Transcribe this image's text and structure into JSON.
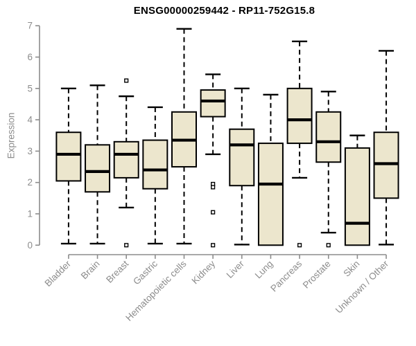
{
  "chart_data": {
    "type": "boxplot",
    "title": "ENSG00000259442 - RP11-752G15.8",
    "ylabel": "Expression",
    "xlabel": "",
    "ylim": [
      0,
      7
    ],
    "yticks": [
      0,
      1,
      2,
      3,
      4,
      5,
      6,
      7
    ],
    "grid": false,
    "legend": false,
    "categories": [
      "Bladder",
      "Brain",
      "Breast",
      "Gastric",
      "Hematopoietic cells",
      "Kidney",
      "Liver",
      "Lung",
      "Pancreas",
      "Prostate",
      "Skin",
      "Unknown / Other"
    ],
    "series": [
      {
        "category": "Bladder",
        "whisker_low": 0.05,
        "q1": 2.05,
        "median": 2.9,
        "q3": 3.6,
        "whisker_high": 5.0,
        "outliers": []
      },
      {
        "category": "Brain",
        "whisker_low": 0.05,
        "q1": 1.7,
        "median": 2.35,
        "q3": 3.2,
        "whisker_high": 5.1,
        "outliers": []
      },
      {
        "category": "Breast",
        "whisker_low": 1.2,
        "q1": 2.15,
        "median": 2.9,
        "q3": 3.3,
        "whisker_high": 4.75,
        "outliers": [
          5.25,
          0.0
        ]
      },
      {
        "category": "Gastric",
        "whisker_low": 0.05,
        "q1": 1.8,
        "median": 2.4,
        "q3": 3.35,
        "whisker_high": 4.4,
        "outliers": []
      },
      {
        "category": "Hematopoietic cells",
        "whisker_low": 0.05,
        "q1": 2.5,
        "median": 3.35,
        "q3": 4.25,
        "whisker_high": 6.9,
        "outliers": []
      },
      {
        "category": "Kidney",
        "whisker_low": 2.9,
        "q1": 4.1,
        "median": 4.6,
        "q3": 4.95,
        "whisker_high": 5.45,
        "outliers": [
          1.95,
          1.85,
          1.05,
          0.0
        ]
      },
      {
        "category": "Liver",
        "whisker_low": 0.02,
        "q1": 1.9,
        "median": 3.2,
        "q3": 3.7,
        "whisker_high": 5.0,
        "outliers": []
      },
      {
        "category": "Lung",
        "whisker_low": 0.0,
        "q1": 0.0,
        "median": 1.95,
        "q3": 3.25,
        "whisker_high": 4.8,
        "outliers": []
      },
      {
        "category": "Pancreas",
        "whisker_low": 2.15,
        "q1": 3.25,
        "median": 4.0,
        "q3": 5.0,
        "whisker_high": 6.5,
        "outliers": [
          0.0
        ]
      },
      {
        "category": "Prostate",
        "whisker_low": 0.4,
        "q1": 2.65,
        "median": 3.3,
        "q3": 4.25,
        "whisker_high": 4.9,
        "outliers": [
          0.0
        ]
      },
      {
        "category": "Skin",
        "whisker_low": 0.0,
        "q1": 0.0,
        "median": 0.7,
        "q3": 3.1,
        "whisker_high": 3.5,
        "outliers": []
      },
      {
        "category": "Unknown / Other",
        "whisker_low": 0.02,
        "q1": 1.5,
        "median": 2.6,
        "q3": 3.6,
        "whisker_high": 6.2,
        "outliers": []
      }
    ],
    "colors": {
      "box_fill": "#ece6cd",
      "box_stroke": "#000000",
      "median": "#000000",
      "whisker": "#000000",
      "outlier_fill": "#ffffff",
      "axis": "#8c8c8c",
      "tick_text": "#8c8c8c",
      "title": "#000000",
      "background": "#ffffff"
    }
  }
}
